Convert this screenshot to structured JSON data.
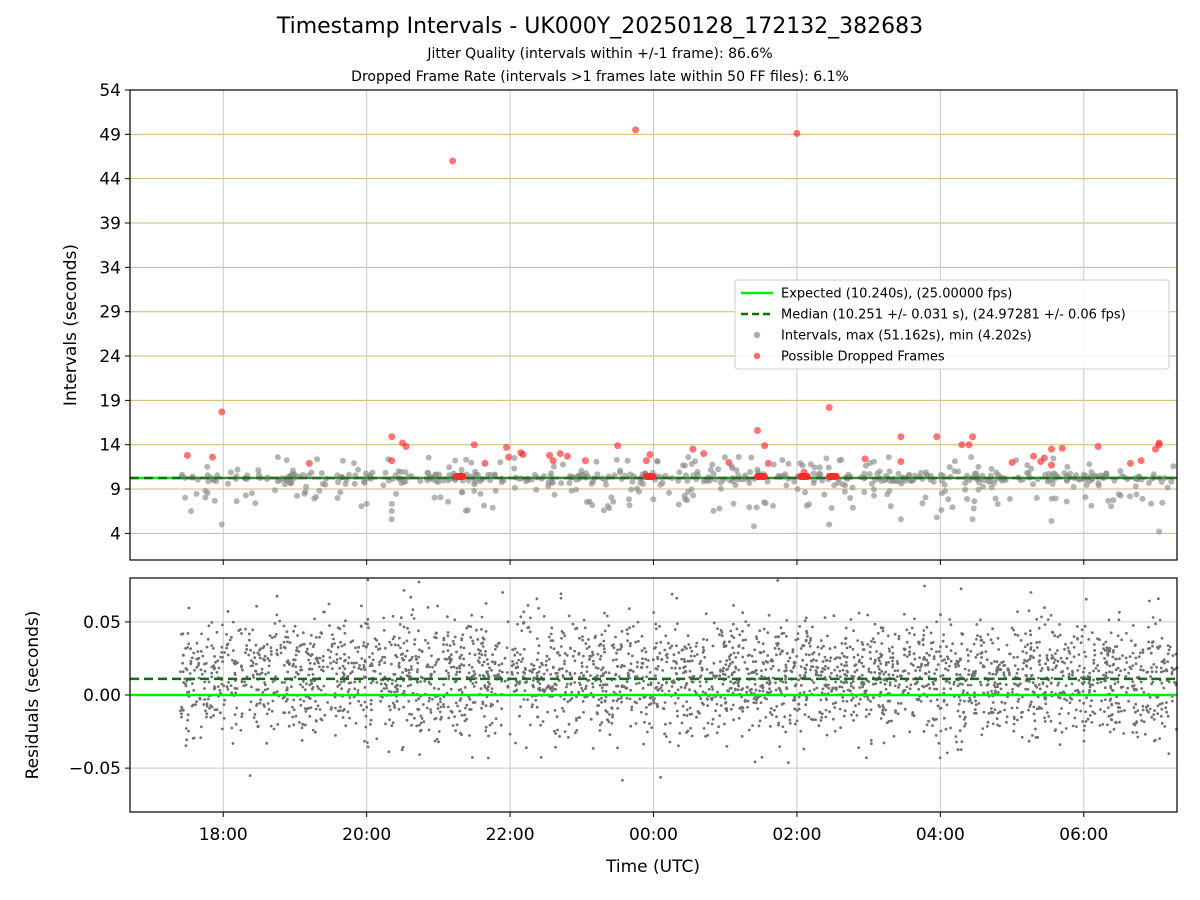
{
  "titles": {
    "main": "Timestamp Intervals - UK000Y_20250128_172132_382683",
    "jitter": "Jitter Quality (intervals within +/-1 frame): 86.6%",
    "dropped": "Dropped Frame Rate (intervals >1 frames late within 50 FF files): 6.1%"
  },
  "colors": {
    "expected": "#00ee00",
    "median": "#007700",
    "intervals": "#8c8c8c",
    "dropped": "#ff2a2a",
    "hgrid_top": "#d4b76a",
    "grid": "#c8c8c8",
    "residual_dots": "#707070"
  },
  "chart_data": [
    {
      "type": "scatter",
      "panel": "intervals",
      "ylabel": "Intervals (seconds)",
      "xlabel": "",
      "ylim": [
        1.0,
        54.0
      ],
      "yticks": [
        4,
        9,
        14,
        19,
        24,
        29,
        34,
        39,
        44,
        49,
        54
      ],
      "xlim_hours": [
        16.7,
        31.3
      ],
      "xticks_hours": [
        18,
        20,
        22,
        24,
        26,
        28,
        30
      ],
      "xtick_labels": [
        "18:00",
        "20:00",
        "22:00",
        "00:00",
        "02:00",
        "04:00",
        "06:00"
      ],
      "expected": 10.24,
      "median": 10.251,
      "legend_position": "center-right",
      "legend": {
        "expected": "Expected (10.240s), (25.00000 fps)",
        "median": "Median (10.251 +/- 0.031 s), (24.97281 +/- 0.06 fps)",
        "intervals": "Intervals, max (51.162s), min (4.202s)",
        "dropped": "Possible Dropped Frames"
      },
      "dropped_points": [
        [
          17.5,
          12.8
        ],
        [
          17.85,
          12.6
        ],
        [
          17.98,
          17.7
        ],
        [
          19.2,
          11.9
        ],
        [
          20.35,
          14.9
        ],
        [
          20.35,
          12.2
        ],
        [
          20.5,
          14.2
        ],
        [
          20.55,
          13.8
        ],
        [
          21.2,
          46.0
        ],
        [
          21.5,
          14.0
        ],
        [
          21.65,
          11.9
        ],
        [
          21.95,
          13.7
        ],
        [
          21.98,
          12.6
        ],
        [
          22.15,
          13.1
        ],
        [
          22.18,
          12.9
        ],
        [
          22.55,
          12.8
        ],
        [
          22.6,
          12.2
        ],
        [
          22.7,
          13.0
        ],
        [
          22.8,
          12.7
        ],
        [
          23.05,
          12.2
        ],
        [
          23.5,
          13.9
        ],
        [
          23.75,
          49.5
        ],
        [
          23.9,
          12.2
        ],
        [
          23.95,
          12.9
        ],
        [
          24.55,
          13.5
        ],
        [
          24.7,
          13.0
        ],
        [
          25.05,
          12.0
        ],
        [
          25.45,
          15.6
        ],
        [
          25.55,
          13.9
        ],
        [
          25.6,
          11.9
        ],
        [
          26.0,
          49.1
        ],
        [
          26.1,
          10.9
        ],
        [
          26.45,
          18.2
        ],
        [
          26.95,
          12.4
        ],
        [
          27.45,
          12.1
        ],
        [
          27.45,
          14.9
        ],
        [
          27.95,
          14.9
        ],
        [
          28.3,
          14.0
        ],
        [
          28.4,
          14.0
        ],
        [
          28.45,
          14.9
        ],
        [
          29.0,
          12.0
        ],
        [
          29.3,
          12.7
        ],
        [
          29.4,
          12.1
        ],
        [
          29.45,
          12.5
        ],
        [
          29.55,
          11.7
        ],
        [
          29.55,
          13.5
        ],
        [
          29.7,
          13.6
        ],
        [
          30.2,
          13.8
        ],
        [
          30.65,
          11.9
        ],
        [
          30.8,
          12.2
        ],
        [
          31.0,
          13.5
        ],
        [
          31.05,
          14.0
        ],
        [
          31.05,
          14.2
        ]
      ],
      "dropped_clusters": [
        [
          21.25,
          21.35
        ],
        [
          23.9,
          24.0
        ],
        [
          25.45,
          25.55
        ],
        [
          26.05,
          26.15
        ],
        [
          26.45,
          26.55
        ]
      ],
      "series": [
        {
          "name": "Intervals",
          "count_shown": "approx 300 points scattered between 4.2 and 13 s, dense at 10.24 s"
        }
      ]
    },
    {
      "type": "scatter",
      "panel": "residuals",
      "ylabel": "Residuals (seconds)",
      "xlabel": "Time (UTC)",
      "ylim": [
        -0.08,
        0.08
      ],
      "yticks": [
        -0.05,
        0.0,
        0.05
      ],
      "ytick_labels": [
        "−0.05",
        "0.00",
        "0.05"
      ],
      "expected_line": 0.0,
      "median_line": 0.011,
      "x_start_hours": 17.4,
      "x_end_hours": 31.3,
      "residual_center": 0.012,
      "residual_spread_sd": 0.02
    }
  ]
}
